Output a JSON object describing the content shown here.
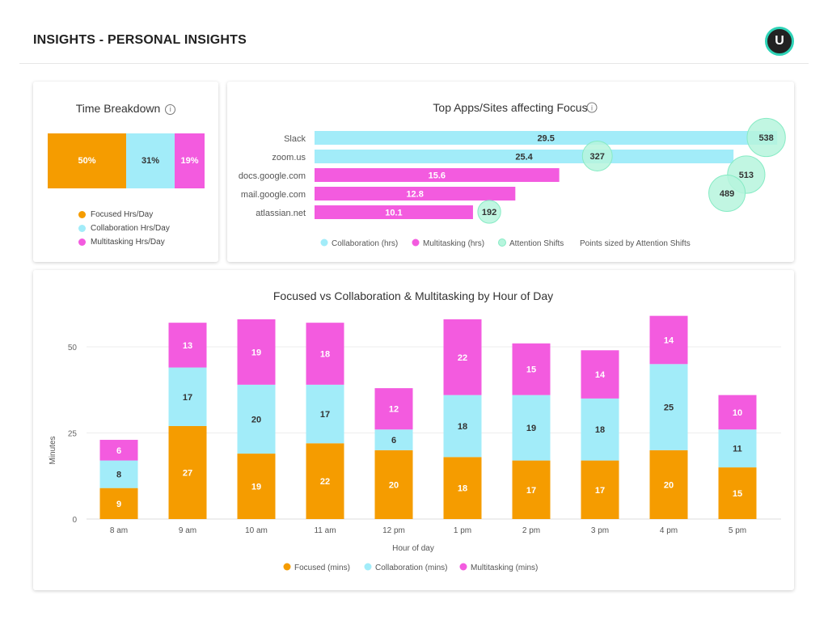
{
  "header": {
    "title": "INSIGHTS - PERSONAL INSIGHTS",
    "avatar_initial": "U"
  },
  "colors": {
    "focused": "#f59c00",
    "collaboration": "#a2ecf9",
    "multitasking": "#f35bdf",
    "attention": "#b6f5dd",
    "attention_border": "#86ebc4",
    "accent": "#2ed3b7"
  },
  "time_breakdown": {
    "title": "Time Breakdown",
    "info_icon": "i",
    "segments": [
      {
        "label": "Focused Hrs/Day",
        "value": 50,
        "text": "50%"
      },
      {
        "label": "Collaboration Hrs/Day",
        "value": 31,
        "text": "31%"
      },
      {
        "label": "Multitasking Hrs/Day",
        "value": 19,
        "text": "19%"
      }
    ]
  },
  "chart_data": [
    {
      "type": "bar",
      "orientation": "horizontal",
      "title": "Top Apps/Sites affecting Focus",
      "categories": [
        "Slack",
        "zoom.us",
        "docs.google.com",
        "mail.google.com",
        "atlassian.net"
      ],
      "series": [
        {
          "name": "Collaboration (hrs)",
          "values": [
            29.5,
            25.4,
            null,
            null,
            null
          ]
        },
        {
          "name": "Multitasking (hrs)",
          "values": [
            null,
            null,
            15.6,
            12.8,
            10.1
          ]
        },
        {
          "name": "Attention Shifts",
          "type": "bubble",
          "values": [
            538,
            327,
            513,
            489,
            192
          ]
        }
      ],
      "legend": [
        "Collaboration (hrs)",
        "Multitasking (hrs)",
        "Attention Shifts"
      ],
      "note": "Points sized by Attention Shifts",
      "legend_position": "bottom"
    },
    {
      "type": "bar",
      "stacked": true,
      "title": "Focused vs Collaboration & Multitasking by Hour of Day",
      "categories": [
        "8 am",
        "9 am",
        "10 am",
        "11 am",
        "12 pm",
        "1 pm",
        "2 pm",
        "3 pm",
        "4 pm",
        "5 pm"
      ],
      "series": [
        {
          "name": "Focused (mins)",
          "values": [
            9,
            27,
            19,
            22,
            20,
            18,
            17,
            17,
            20,
            15
          ]
        },
        {
          "name": "Collaboration (mins)",
          "values": [
            8,
            17,
            20,
            17,
            6,
            18,
            19,
            18,
            25,
            11
          ]
        },
        {
          "name": "Multitasking (mins)",
          "values": [
            6,
            13,
            19,
            18,
            12,
            22,
            15,
            14,
            14,
            10
          ]
        }
      ],
      "xlabel": "Hour of day",
      "ylabel": "Minutes",
      "yticks": [
        0,
        25,
        50
      ],
      "ylim": [
        0,
        60
      ],
      "grid": true,
      "legend_position": "bottom"
    }
  ]
}
